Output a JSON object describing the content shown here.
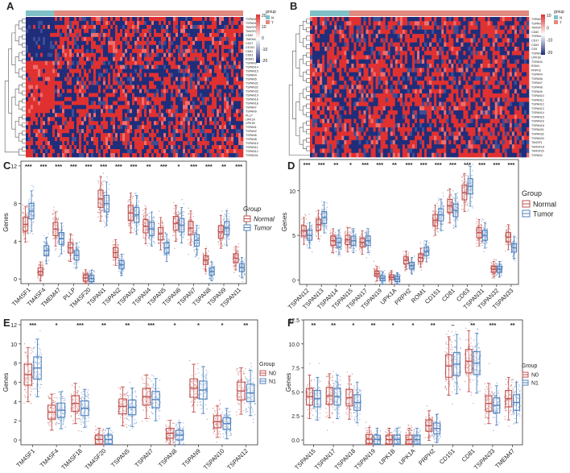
{
  "figure": {
    "title": "Multi-panel figure: heatmaps (A, B) and box plots (C-F) of tetraspanin family genes",
    "colors": {
      "normal": "#c0504d",
      "tumor": "#4f81bd",
      "heat_high": "#e03030",
      "heat_low": "#1f2d7a",
      "heat_mid": "#ffffff",
      "group_n": "#7fc1c6",
      "group_t": "#e08a80"
    }
  },
  "chart_data": [
    {
      "panel": "A",
      "type": "heatmap",
      "legend_title": "group",
      "legend_groups": [
        "N",
        "T"
      ],
      "scale_ticks": [
        20,
        10,
        0,
        -10,
        -20
      ],
      "group_split_fraction": 0.13,
      "row_labels": [
        "TSPAN17",
        "TSPAN13",
        "TM4SF1",
        "TM4SF20",
        "CD82",
        "TMEM47",
        "CD37",
        "CD151",
        "CD81",
        "CD63",
        "ROM1",
        "TSPAN3",
        "TSPAN14",
        "TSPAN15",
        "TSPAN4",
        "TSPAN5",
        "TSPAN31",
        "TSPAN32",
        "TSPAN33",
        "TSPAN19",
        "TSPAN16",
        "TSPAN18",
        "TSPAN7",
        "TSPAN9",
        "PLLP",
        "UPK1A",
        "UPK1B",
        "TSPAN1",
        "TSPAN2",
        "TSPAN6",
        "TSPAN8",
        "TSPAN10",
        "TSPAN11",
        "TSPAN12",
        "TSPAN31"
      ],
      "row_clusters": [
        {
          "rows": 11,
          "pattern": "low_in_N"
        },
        {
          "rows": 13,
          "pattern": "high_in_N"
        },
        {
          "rows": 11,
          "pattern": "mixed"
        }
      ]
    },
    {
      "panel": "B",
      "type": "heatmap",
      "legend_title": "group",
      "legend_groups": [
        "N",
        "T"
      ],
      "scale_ticks": [
        10,
        0,
        -10,
        -20
      ],
      "group_split_fraction": 0.18,
      "row_labels": [
        "TSPAN17",
        "TSPAN19",
        "TM4SF4",
        "CD82",
        "TSPAN1",
        "CD37",
        "CD63",
        "CD9",
        "TSPAN5",
        "UPK1B",
        "TSPAN3",
        "ROM1",
        "PRPH2",
        "TSPAN4",
        "TSPAN6",
        "TSPAN7",
        "TSPAN8",
        "TSPAN9",
        "TSPAN10",
        "TSPAN11",
        "TSPAN12",
        "TSPAN13",
        "TSPAN14",
        "TSPAN15",
        "TSPAN16",
        "TSPAN18",
        "TSPAN31",
        "TSPAN32",
        "TSPAN33",
        "TM4SF1",
        "TM4SF18",
        "TM4SF20",
        "TSPAN2"
      ],
      "row_clusters": [
        {
          "rows": 14,
          "pattern": "mixed"
        },
        {
          "rows": 19,
          "pattern": "mixed"
        }
      ]
    },
    {
      "panel": "C",
      "type": "box",
      "ylabel": "Genes",
      "ylim": [
        -0.5,
        12.5
      ],
      "yticks": [
        0,
        4,
        8,
        12
      ],
      "legend_title": "Group",
      "groups": [
        "Normal",
        "Tumor"
      ],
      "categories": [
        "TM4SF1",
        "TM4SF4",
        "TMEM47",
        "PLLP",
        "TM4SF20",
        "TSPAN1",
        "TSPAN2",
        "TSPAN3",
        "TSPAN4",
        "TSPAN5",
        "TSPAN6",
        "TSPAN7",
        "TSPAN8",
        "TSPAN9",
        "TSPAN11"
      ],
      "significance": [
        "***",
        "***",
        "***",
        "***",
        "***",
        "***",
        "***",
        "***",
        "**",
        "***",
        "*",
        "***",
        "***",
        "**",
        "***"
      ],
      "series": [
        {
          "name": "Normal",
          "medians": [
            5.8,
            0.8,
            5.3,
            3.3,
            0.1,
            8.5,
            2.8,
            7.0,
            5.6,
            4.8,
            5.9,
            5.4,
            2.0,
            5.0,
            2.2
          ]
        },
        {
          "name": "Tumor",
          "medians": [
            7.2,
            3.0,
            4.3,
            2.5,
            0.05,
            8.0,
            1.5,
            6.8,
            5.3,
            3.3,
            5.7,
            4.1,
            0.8,
            5.4,
            1.2
          ]
        }
      ]
    },
    {
      "panel": "D",
      "type": "box",
      "ylabel": "Genes",
      "ylim": [
        -0.5,
        13.5
      ],
      "yticks": [
        0,
        5,
        10
      ],
      "legend_title": "Group",
      "groups": [
        "Normal",
        "Tumor"
      ],
      "categories": [
        "TSPAN12",
        "TSPAN13",
        "TSPAN14",
        "TSPAN15",
        "TSPAN17",
        "TSPAN19",
        "UPK1A",
        "PRPH2",
        "ROM1",
        "CD151",
        "CD81",
        "CD63",
        "TSPAN31",
        "TSPAN32",
        "TSPAN33"
      ],
      "significance": [
        "***",
        "***",
        "**",
        "*",
        "***",
        "***",
        "**",
        "***",
        "***",
        "***",
        "***",
        "***",
        "***",
        "***",
        "***"
      ],
      "series": [
        {
          "name": "Normal",
          "medians": [
            5.5,
            6.2,
            4.4,
            4.5,
            4.2,
            0.7,
            0.3,
            2.2,
            2.5,
            6.7,
            8.3,
            9.8,
            5.3,
            1.2,
            4.8
          ]
        },
        {
          "name": "Tumor",
          "medians": [
            5.0,
            7.0,
            4.2,
            4.4,
            4.4,
            0.2,
            0.1,
            1.6,
            3.2,
            7.3,
            7.8,
            10.5,
            5.0,
            1.2,
            3.6
          ]
        }
      ]
    },
    {
      "panel": "E",
      "type": "box",
      "ylabel": "Genes",
      "ylim": [
        -0.5,
        12.5
      ],
      "yticks": [
        0,
        2,
        4,
        6,
        8,
        10,
        12
      ],
      "legend_title": "Group",
      "groups": [
        "N0",
        "N1"
      ],
      "categories": [
        "TM4SF1",
        "TM4SF4",
        "TM4SF18",
        "TM4SF20",
        "TSPAN5",
        "TSPAN7",
        "TSPAN8",
        "TSPAN9",
        "TSPAN10",
        "TSPAN12"
      ],
      "significance": [
        "***",
        "*",
        "***",
        "**",
        "**",
        "***",
        "*",
        "*",
        "*",
        "**"
      ],
      "series": [
        {
          "name": "N0",
          "medians": [
            6.8,
            2.9,
            3.8,
            0.05,
            3.5,
            4.5,
            0.7,
            5.4,
            1.9,
            5.1
          ]
        },
        {
          "name": "N1",
          "medians": [
            7.5,
            3.1,
            3.3,
            0.05,
            3.4,
            4.2,
            0.5,
            5.2,
            1.7,
            4.9
          ]
        }
      ]
    },
    {
      "panel": "F",
      "type": "box",
      "ylabel": "Genes",
      "ylim": [
        -0.5,
        12.5
      ],
      "yticks": [
        0.0,
        2.5,
        5.0,
        7.5,
        10.0,
        12.5
      ],
      "legend_title": "Group",
      "groups": [
        "N0",
        "N1"
      ],
      "categories": [
        "TSPAN15",
        "TSPAN17",
        "TSPAN18",
        "TSPAN19",
        "UPK1B",
        "UPK1A",
        "PRPH2",
        "CD151",
        "CD81",
        "TSPAN33",
        "TMEM47"
      ],
      "significance": [
        "**",
        "**",
        "*",
        "**",
        "*",
        "*",
        "**",
        "–",
        "**",
        "***",
        "**"
      ],
      "series": [
        {
          "name": "N0",
          "medians": [
            4.5,
            4.6,
            4.4,
            0.1,
            0.05,
            0.05,
            1.5,
            7.7,
            8.2,
            3.8,
            4.3
          ]
        },
        {
          "name": "N1",
          "medians": [
            4.3,
            4.5,
            3.9,
            0.05,
            0.05,
            0.05,
            1.2,
            7.9,
            8.0,
            3.6,
            3.9
          ]
        }
      ]
    }
  ]
}
